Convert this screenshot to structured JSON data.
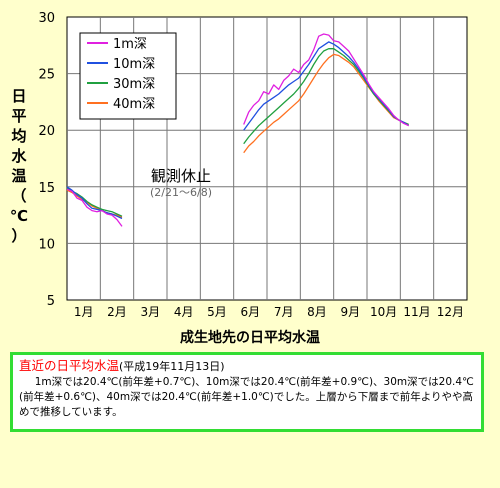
{
  "chart_data": {
    "type": "line",
    "title": "成生地先の日平均水温",
    "ylabel_chars": [
      "日",
      "平",
      "均",
      "水",
      "温",
      "（",
      "℃",
      "）"
    ],
    "ylim": [
      5,
      30
    ],
    "yticks": [
      5,
      10,
      15,
      20,
      25,
      30
    ],
    "xlim": [
      0,
      12
    ],
    "xticks": [
      "1月",
      "2月",
      "3月",
      "4月",
      "5月",
      "6月",
      "7月",
      "8月",
      "9月",
      "10月",
      "11月",
      "12月"
    ],
    "annotation": {
      "text": "観測休止",
      "sub": "(2/21～6/8)"
    },
    "series": [
      {
        "name": "1m深",
        "color": "#e020e0",
        "segments": [
          [
            [
              0.0,
              14.8
            ],
            [
              0.15,
              14.6
            ],
            [
              0.3,
              14.0
            ],
            [
              0.45,
              13.8
            ],
            [
              0.6,
              13.2
            ],
            [
              0.75,
              12.9
            ],
            [
              0.9,
              12.8
            ],
            [
              1.05,
              12.9
            ],
            [
              1.2,
              12.6
            ],
            [
              1.35,
              12.5
            ],
            [
              1.5,
              12.1
            ],
            [
              1.65,
              11.5
            ]
          ],
          [
            [
              5.3,
              20.5
            ],
            [
              5.45,
              21.6
            ],
            [
              5.6,
              22.2
            ],
            [
              5.75,
              22.6
            ],
            [
              5.9,
              23.4
            ],
            [
              6.05,
              23.2
            ],
            [
              6.2,
              24.0
            ],
            [
              6.35,
              23.6
            ],
            [
              6.5,
              24.4
            ],
            [
              6.65,
              24.8
            ],
            [
              6.8,
              25.4
            ],
            [
              6.95,
              25.1
            ],
            [
              7.1,
              25.8
            ],
            [
              7.25,
              26.2
            ],
            [
              7.4,
              27.1
            ],
            [
              7.55,
              28.3
            ],
            [
              7.7,
              28.5
            ],
            [
              7.85,
              28.4
            ],
            [
              8.0,
              27.9
            ],
            [
              8.15,
              27.8
            ],
            [
              8.3,
              27.4
            ],
            [
              8.45,
              27.0
            ],
            [
              8.6,
              26.3
            ],
            [
              8.75,
              25.6
            ],
            [
              8.9,
              24.9
            ],
            [
              9.05,
              24.1
            ],
            [
              9.2,
              23.4
            ],
            [
              9.35,
              22.9
            ],
            [
              9.5,
              22.4
            ],
            [
              9.65,
              21.9
            ],
            [
              9.8,
              21.3
            ],
            [
              9.95,
              20.9
            ],
            [
              10.1,
              20.6
            ],
            [
              10.25,
              20.4
            ]
          ]
        ]
      },
      {
        "name": "10m深",
        "color": "#2050e0",
        "segments": [
          [
            [
              0.0,
              15.0
            ],
            [
              0.15,
              14.7
            ],
            [
              0.3,
              14.3
            ],
            [
              0.45,
              14.0
            ],
            [
              0.6,
              13.5
            ],
            [
              0.75,
              13.1
            ],
            [
              0.9,
              13.0
            ],
            [
              1.05,
              12.9
            ],
            [
              1.2,
              12.7
            ],
            [
              1.35,
              12.6
            ],
            [
              1.5,
              12.4
            ],
            [
              1.65,
              12.2
            ]
          ],
          [
            [
              5.3,
              20.0
            ],
            [
              5.45,
              20.6
            ],
            [
              5.6,
              21.2
            ],
            [
              5.75,
              21.8
            ],
            [
              5.9,
              22.3
            ],
            [
              6.05,
              22.6
            ],
            [
              6.2,
              22.9
            ],
            [
              6.35,
              23.2
            ],
            [
              6.5,
              23.6
            ],
            [
              6.65,
              24.0
            ],
            [
              6.8,
              24.3
            ],
            [
              6.95,
              24.6
            ],
            [
              7.1,
              25.2
            ],
            [
              7.25,
              25.8
            ],
            [
              7.4,
              26.5
            ],
            [
              7.55,
              27.2
            ],
            [
              7.7,
              27.5
            ],
            [
              7.85,
              27.8
            ],
            [
              8.0,
              27.6
            ],
            [
              8.15,
              27.3
            ],
            [
              8.3,
              26.9
            ],
            [
              8.45,
              26.5
            ],
            [
              8.6,
              26.0
            ],
            [
              8.75,
              25.4
            ],
            [
              8.9,
              24.7
            ],
            [
              9.05,
              24.0
            ],
            [
              9.2,
              23.3
            ],
            [
              9.35,
              22.8
            ],
            [
              9.5,
              22.3
            ],
            [
              9.65,
              21.8
            ],
            [
              9.8,
              21.2
            ],
            [
              9.95,
              20.9
            ],
            [
              10.1,
              20.7
            ],
            [
              10.25,
              20.4
            ]
          ]
        ]
      },
      {
        "name": "30m深",
        "color": "#20a040",
        "segments": [
          [
            [
              0.0,
              14.9
            ],
            [
              0.15,
              14.6
            ],
            [
              0.3,
              14.4
            ],
            [
              0.45,
              14.1
            ],
            [
              0.6,
              13.7
            ],
            [
              0.75,
              13.4
            ],
            [
              0.9,
              13.2
            ],
            [
              1.05,
              13.0
            ],
            [
              1.2,
              12.9
            ],
            [
              1.35,
              12.8
            ],
            [
              1.5,
              12.6
            ],
            [
              1.65,
              12.4
            ]
          ],
          [
            [
              5.3,
              18.8
            ],
            [
              5.45,
              19.4
            ],
            [
              5.6,
              19.9
            ],
            [
              5.75,
              20.4
            ],
            [
              5.9,
              20.8
            ],
            [
              6.05,
              21.2
            ],
            [
              6.2,
              21.6
            ],
            [
              6.35,
              22.0
            ],
            [
              6.5,
              22.4
            ],
            [
              6.65,
              22.8
            ],
            [
              6.8,
              23.2
            ],
            [
              6.95,
              23.7
            ],
            [
              7.1,
              24.3
            ],
            [
              7.25,
              25.0
            ],
            [
              7.4,
              25.8
            ],
            [
              7.55,
              26.5
            ],
            [
              7.7,
              27.0
            ],
            [
              7.85,
              27.2
            ],
            [
              8.0,
              27.2
            ],
            [
              8.15,
              26.9
            ],
            [
              8.3,
              26.6
            ],
            [
              8.45,
              26.2
            ],
            [
              8.6,
              25.8
            ],
            [
              8.75,
              25.2
            ],
            [
              8.9,
              24.6
            ],
            [
              9.05,
              23.9
            ],
            [
              9.2,
              23.2
            ],
            [
              9.35,
              22.7
            ],
            [
              9.5,
              22.2
            ],
            [
              9.65,
              21.7
            ],
            [
              9.8,
              21.2
            ],
            [
              9.95,
              20.9
            ],
            [
              10.1,
              20.7
            ],
            [
              10.25,
              20.5
            ]
          ]
        ]
      },
      {
        "name": "40m深",
        "color": "#ff7020",
        "segments": [
          [
            [
              0.0,
              14.7
            ],
            [
              0.15,
              14.5
            ],
            [
              0.3,
              14.2
            ],
            [
              0.45,
              13.9
            ],
            [
              0.6,
              13.6
            ],
            [
              0.75,
              13.3
            ],
            [
              0.9,
              13.1
            ],
            [
              1.05,
              12.9
            ],
            [
              1.2,
              12.7
            ],
            [
              1.35,
              12.6
            ],
            [
              1.5,
              12.5
            ],
            [
              1.65,
              12.3
            ]
          ],
          [
            [
              5.3,
              18.0
            ],
            [
              5.45,
              18.6
            ],
            [
              5.6,
              19.0
            ],
            [
              5.75,
              19.5
            ],
            [
              5.9,
              19.9
            ],
            [
              6.05,
              20.3
            ],
            [
              6.2,
              20.7
            ],
            [
              6.35,
              21.0
            ],
            [
              6.5,
              21.4
            ],
            [
              6.65,
              21.8
            ],
            [
              6.8,
              22.2
            ],
            [
              6.95,
              22.6
            ],
            [
              7.1,
              23.2
            ],
            [
              7.25,
              23.9
            ],
            [
              7.4,
              24.6
            ],
            [
              7.55,
              25.3
            ],
            [
              7.7,
              25.9
            ],
            [
              7.85,
              26.4
            ],
            [
              8.0,
              26.7
            ],
            [
              8.15,
              26.6
            ],
            [
              8.3,
              26.3
            ],
            [
              8.45,
              26.0
            ],
            [
              8.6,
              25.6
            ],
            [
              8.75,
              25.0
            ],
            [
              8.9,
              24.4
            ],
            [
              9.05,
              23.8
            ],
            [
              9.2,
              23.2
            ],
            [
              9.35,
              22.6
            ],
            [
              9.5,
              22.1
            ],
            [
              9.65,
              21.6
            ],
            [
              9.8,
              21.1
            ],
            [
              9.95,
              20.9
            ],
            [
              10.1,
              20.7
            ],
            [
              10.25,
              20.5
            ]
          ]
        ]
      }
    ]
  },
  "note": {
    "title": "直近の日平均水温",
    "date": "(平成19年11月13日)",
    "body": "1m深では20.4℃(前年差+0.7℃)、10m深では20.4℃(前年差+0.9℃)、30m深では20.4℃(前年差+0.6℃)、40m深では20.4℃(前年差+1.0℃)でした。上層から下層まで前年よりやや高めで推移しています。"
  }
}
